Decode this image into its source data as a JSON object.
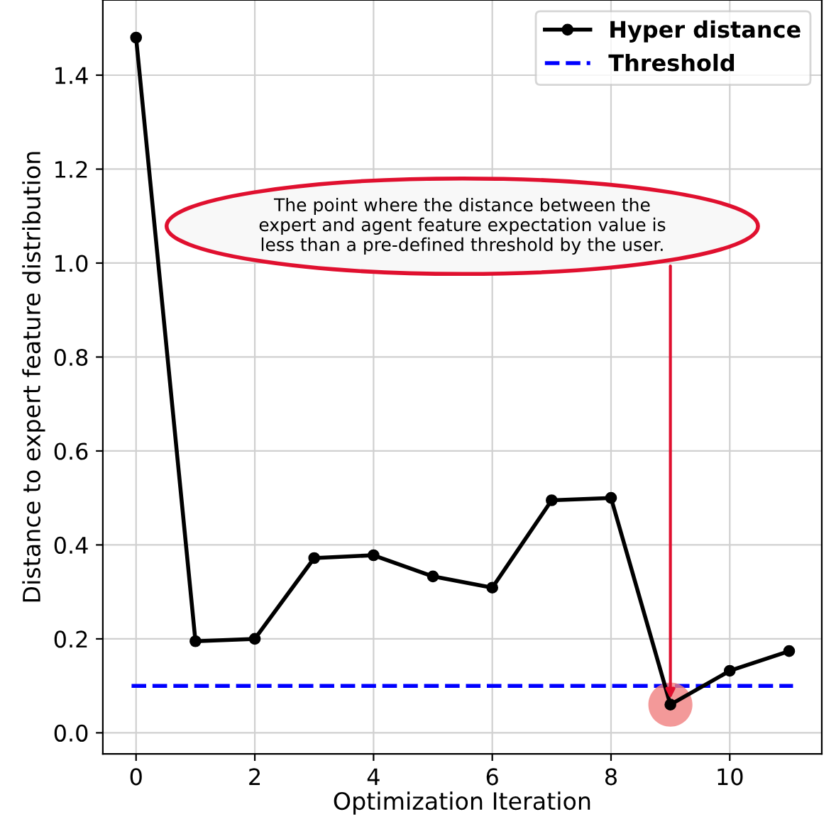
{
  "chart_data": {
    "type": "line",
    "xlabel": "Optimization Iteration",
    "ylabel": "Distance to expert feature distribution",
    "x": [
      0,
      1,
      2,
      3,
      4,
      5,
      6,
      7,
      8,
      9,
      10,
      11
    ],
    "series": [
      {
        "name": "Hyper distance",
        "color": "#000000",
        "values": [
          1.48,
          0.195,
          0.2,
          0.372,
          0.378,
          0.333,
          0.309,
          0.495,
          0.5,
          0.06,
          0.132,
          0.174
        ],
        "marker": "circle",
        "line_style": "solid"
      }
    ],
    "ref_lines": [
      {
        "axis": "y",
        "value": 0.1,
        "label": "Threshold",
        "color": "#0000ff",
        "line_style": "dashed"
      }
    ],
    "annotations": [
      {
        "text": "The point where the distance between the\nexpert and agent feature expectation value is\nless than a pre-defined threshold by the user.",
        "x": 9,
        "y": 0.06
      }
    ],
    "xlim": [
      -0.56,
      11.55
    ],
    "ylim": [
      -0.045,
      1.56
    ],
    "xticks": [
      0,
      2,
      4,
      6,
      8,
      10
    ],
    "yticks": [
      {
        "value": 0,
        "label": "0.0"
      },
      0.2,
      0.4,
      0.6,
      0.8,
      {
        "value": 1,
        "label": "1.0"
      },
      1.2,
      1.4
    ],
    "grid": true,
    "legend": "top right"
  }
}
